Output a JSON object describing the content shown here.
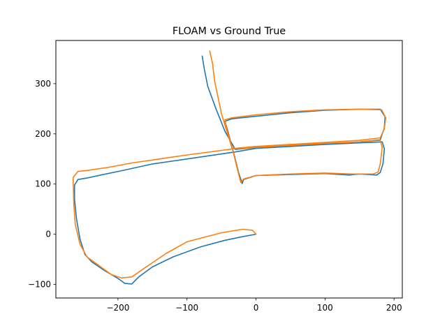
{
  "chart_data": {
    "type": "line",
    "title": "FLOAM vs Ground True",
    "xlabel": "",
    "ylabel": "",
    "xlim": [
      -290,
      212
    ],
    "ylim": [
      -127,
      386
    ],
    "xticks": [
      -200,
      -100,
      0,
      100,
      200
    ],
    "xtick_labels": [
      "−200",
      "−100",
      "0",
      "100",
      "200"
    ],
    "yticks": [
      -100,
      0,
      100,
      200,
      300
    ],
    "ytick_labels": [
      "−100",
      "0",
      "100",
      "200",
      "300"
    ],
    "grid": false,
    "legend": false,
    "series": [
      {
        "color": "#1f77b4",
        "points": [
          [
            0,
            0
          ],
          [
            -20,
            -5
          ],
          [
            -45,
            -12
          ],
          [
            -80,
            -25
          ],
          [
            -120,
            -45
          ],
          [
            -150,
            -65
          ],
          [
            -170,
            -85
          ],
          [
            -180,
            -99
          ],
          [
            -190,
            -98
          ],
          [
            -200,
            -88
          ],
          [
            -220,
            -72
          ],
          [
            -238,
            -55
          ],
          [
            -248,
            -40
          ],
          [
            -255,
            -10
          ],
          [
            -260,
            30
          ],
          [
            -263,
            70
          ],
          [
            -263,
            98
          ],
          [
            -258,
            109
          ],
          [
            -245,
            112
          ],
          [
            -225,
            118
          ],
          [
            -190,
            128
          ],
          [
            -150,
            140
          ],
          [
            -100,
            150
          ],
          [
            -50,
            160
          ],
          [
            -30,
            164
          ],
          [
            0,
            171
          ],
          [
            50,
            175
          ],
          [
            100,
            179
          ],
          [
            150,
            182
          ],
          [
            183,
            184
          ],
          [
            186,
            170
          ],
          [
            184,
            140
          ],
          [
            180,
            123
          ],
          [
            175,
            118
          ],
          [
            150,
            120
          ],
          [
            135,
            118
          ],
          [
            100,
            121
          ],
          [
            50,
            119
          ],
          [
            0,
            117
          ],
          [
            -18,
            109
          ],
          [
            -20,
            101
          ],
          [
            -25,
            122
          ],
          [
            -32,
            160
          ],
          [
            -40,
            202
          ],
          [
            -45,
            225
          ],
          [
            -35,
            230
          ],
          [
            0,
            235
          ],
          [
            50,
            242
          ],
          [
            100,
            247
          ],
          [
            150,
            249
          ],
          [
            180,
            249
          ],
          [
            187,
            234
          ],
          [
            186,
            212
          ],
          [
            180,
            188
          ],
          [
            150,
            184
          ],
          [
            100,
            180
          ],
          [
            50,
            177
          ],
          [
            0,
            173
          ],
          [
            -30,
            169
          ],
          [
            -45,
            205
          ],
          [
            -58,
            250
          ],
          [
            -70,
            295
          ],
          [
            -75,
            330
          ],
          [
            -78,
            355
          ]
        ]
      },
      {
        "color": "#ff7f0e",
        "points": [
          [
            0,
            0
          ],
          [
            -5,
            8
          ],
          [
            -20,
            10
          ],
          [
            -50,
            3
          ],
          [
            -100,
            -15
          ],
          [
            -130,
            -38
          ],
          [
            -160,
            -66
          ],
          [
            -180,
            -85
          ],
          [
            -195,
            -87
          ],
          [
            -210,
            -80
          ],
          [
            -230,
            -60
          ],
          [
            -245,
            -45
          ],
          [
            -255,
            -20
          ],
          [
            -262,
            20
          ],
          [
            -264,
            60
          ],
          [
            -265,
            113
          ],
          [
            -258,
            125
          ],
          [
            -240,
            128
          ],
          [
            -215,
            133
          ],
          [
            -180,
            142
          ],
          [
            -140,
            150
          ],
          [
            -100,
            158
          ],
          [
            -50,
            167
          ],
          [
            -35,
            170
          ],
          [
            0,
            173
          ],
          [
            50,
            177
          ],
          [
            100,
            181
          ],
          [
            150,
            184
          ],
          [
            180,
            187
          ],
          [
            183,
            173
          ],
          [
            180,
            140
          ],
          [
            177,
            124
          ],
          [
            170,
            120
          ],
          [
            140,
            120
          ],
          [
            100,
            122
          ],
          [
            50,
            120
          ],
          [
            0,
            117
          ],
          [
            -18,
            110
          ],
          [
            -22,
            103
          ],
          [
            -28,
            135
          ],
          [
            -35,
            175
          ],
          [
            -42,
            208
          ],
          [
            -45,
            228
          ],
          [
            -35,
            232
          ],
          [
            0,
            238
          ],
          [
            50,
            244
          ],
          [
            100,
            248
          ],
          [
            150,
            249
          ],
          [
            182,
            248
          ],
          [
            188,
            232
          ],
          [
            186,
            210
          ],
          [
            180,
            192
          ],
          [
            150,
            187
          ],
          [
            100,
            183
          ],
          [
            50,
            179
          ],
          [
            0,
            175
          ],
          [
            -30,
            171
          ],
          [
            -35,
            172
          ],
          [
            -40,
            195
          ],
          [
            -50,
            240
          ],
          [
            -60,
            305
          ],
          [
            -63,
            340
          ],
          [
            -67,
            365
          ]
        ]
      }
    ]
  }
}
